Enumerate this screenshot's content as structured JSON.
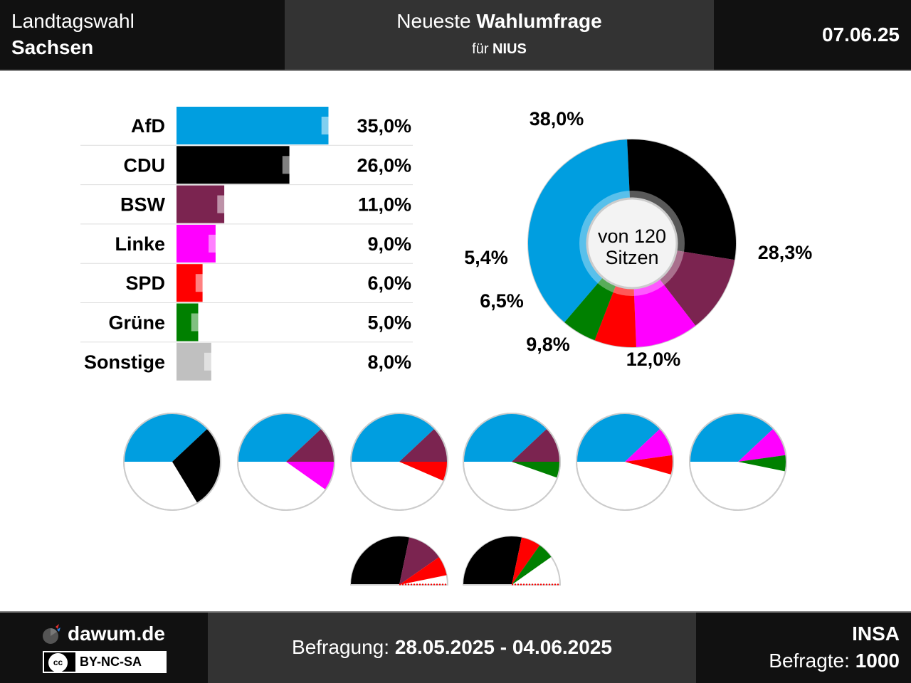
{
  "header": {
    "left_line1": "Landtagswahl",
    "left_line2": "Sachsen",
    "center_prefix": "Neueste",
    "center_bold": "Wahlumfrage",
    "center_sub_prefix": "für",
    "center_sub_bold": "NIUS",
    "date": "07.06.25"
  },
  "chart_data": [
    {
      "type": "bar",
      "categories": [
        "AfD",
        "CDU",
        "BSW",
        "Linke",
        "SPD",
        "Grüne",
        "Sonstige"
      ],
      "values": [
        35.0,
        26.0,
        11.0,
        9.0,
        6.0,
        5.0,
        8.0
      ],
      "value_labels": [
        "35,0%",
        "26,0%",
        "11,0%",
        "9,0%",
        "6,0%",
        "5,0%",
        "8,0%"
      ],
      "previous_values": [
        37.0,
        28.0,
        13.0,
        11.0,
        8.0,
        7.0,
        10.0
      ],
      "colors": [
        "#009EE0",
        "#000000",
        "#7B2450",
        "#FF00FF",
        "#FF0000",
        "#008000",
        "#C0C0C0"
      ]
    },
    {
      "type": "pie",
      "categories": [
        "AfD",
        "CDU",
        "BSW",
        "Linke",
        "SPD",
        "Grüne"
      ],
      "values": [
        38.0,
        28.3,
        12.0,
        9.8,
        6.5,
        5.4
      ],
      "value_labels": [
        "38,0%",
        "28,3%",
        "12,0%",
        "9,8%",
        "6,5%",
        "5,4%"
      ],
      "colors": [
        "#009EE0",
        "#000000",
        "#7B2450",
        "#FF00FF",
        "#FF0000",
        "#008000"
      ],
      "center_line1": "von 120",
      "center_line2": "Sitzen"
    },
    {
      "type": "pie",
      "subtype": "coalition-half-circles",
      "coalitions": [
        {
          "parties": [
            "AfD",
            "CDU"
          ],
          "values": [
            38.0,
            28.3
          ],
          "colors": [
            "#009EE0",
            "#000000"
          ]
        },
        {
          "parties": [
            "AfD",
            "BSW",
            "Linke"
          ],
          "values": [
            38.0,
            12.0,
            9.8
          ],
          "colors": [
            "#009EE0",
            "#7B2450",
            "#FF00FF"
          ]
        },
        {
          "parties": [
            "AfD",
            "BSW",
            "SPD"
          ],
          "values": [
            38.0,
            12.0,
            6.5
          ],
          "colors": [
            "#009EE0",
            "#7B2450",
            "#FF0000"
          ]
        },
        {
          "parties": [
            "AfD",
            "BSW",
            "Grüne"
          ],
          "values": [
            38.0,
            12.0,
            5.4
          ],
          "colors": [
            "#009EE0",
            "#7B2450",
            "#008000"
          ]
        },
        {
          "parties": [
            "AfD",
            "Linke",
            "SPD"
          ],
          "values": [
            38.0,
            9.8,
            6.5
          ],
          "colors": [
            "#009EE0",
            "#FF00FF",
            "#FF0000"
          ]
        },
        {
          "parties": [
            "AfD",
            "Linke",
            "Grüne"
          ],
          "values": [
            38.0,
            9.8,
            5.4
          ],
          "colors": [
            "#009EE0",
            "#FF00FF",
            "#008000"
          ]
        },
        {
          "parties": [
            "CDU",
            "BSW",
            "SPD"
          ],
          "values": [
            28.3,
            12.0,
            6.5
          ],
          "colors": [
            "#000000",
            "#7B2450",
            "#FF0000"
          ]
        },
        {
          "parties": [
            "CDU",
            "SPD",
            "Grüne"
          ],
          "values": [
            28.3,
            6.5,
            5.4
          ],
          "colors": [
            "#000000",
            "#FF0000",
            "#008000"
          ]
        }
      ]
    }
  ],
  "footer": {
    "brand": "dawum.de",
    "license": "BY-NC-SA",
    "cc_icon": "cc",
    "period_label": "Befragung:",
    "period_value": "28.05.2025 - 04.06.2025",
    "institute": "INSA",
    "respondents_label": "Befragte:",
    "respondents_value": "1000"
  }
}
